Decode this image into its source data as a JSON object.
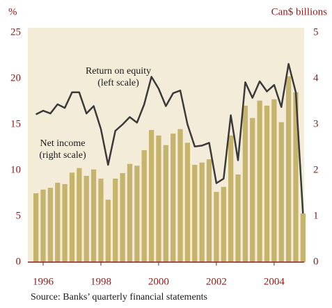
{
  "chart_data": {
    "type": "bar_line",
    "y_label": "%",
    "y2_label": "Can$ billions",
    "source": "Source: Banks’ quarterly financial statements",
    "annotations": [
      {
        "lines": [
          "Return on equity",
          "(left scale)"
        ]
      },
      {
        "lines": [
          "Net income",
          "(right scale)"
        ]
      }
    ],
    "x": [
      1995.75,
      1996,
      1996.25,
      1996.5,
      1996.75,
      1997,
      1997.25,
      1997.5,
      1997.75,
      1998,
      1998.25,
      1998.5,
      1998.75,
      1999,
      1999.25,
      1999.5,
      1999.75,
      2000,
      2000.25,
      2000.5,
      2000.75,
      2001,
      2001.25,
      2001.5,
      2001.75,
      2002,
      2002.25,
      2002.5,
      2002.75,
      2003,
      2003.25,
      2003.5,
      2003.75,
      2004,
      2004.25,
      2004.5,
      2004.75,
      2005
    ],
    "xlim": [
      1995.47,
      2005.04
    ],
    "xticks": [
      1996,
      1998,
      2000,
      2002,
      2004
    ],
    "ylim": [
      0,
      25
    ],
    "yticks": [
      0,
      5,
      10,
      15,
      20,
      25
    ],
    "y2lim": [
      0,
      5
    ],
    "y2ticks": [
      0,
      1,
      2,
      3,
      4,
      5
    ],
    "series": [
      {
        "name": "Net income",
        "type": "bar",
        "axis": "y2",
        "color": "#c7b46c",
        "values": [
          1.5,
          1.58,
          1.62,
          1.73,
          1.7,
          1.95,
          2.05,
          1.88,
          2.02,
          1.82,
          1.36,
          1.82,
          1.94,
          2.14,
          2.1,
          2.44,
          2.88,
          2.76,
          2.55,
          2.8,
          2.9,
          2.6,
          2.12,
          2.17,
          2.24,
          1.53,
          1.64,
          2.76,
          1.91,
          3.41,
          3.14,
          3.52,
          3.41,
          3.55,
          3.05,
          4.05,
          3.7,
          1.06
        ]
      },
      {
        "name": "Return on equity",
        "type": "line",
        "color": "#3a3a3a",
        "values": [
          16.1,
          16.5,
          16.2,
          17.2,
          16.8,
          18.5,
          18.5,
          16.2,
          17,
          14.5,
          10.6,
          14.3,
          15,
          15.8,
          15.2,
          17.2,
          20.2,
          18.9,
          17,
          18.4,
          18.7,
          15,
          12.6,
          12.7,
          13,
          8.6,
          9.1,
          16,
          11.1,
          19.6,
          17.9,
          19.7,
          18.6,
          19.3,
          16.9,
          21.6,
          18.5,
          5.3
        ]
      }
    ]
  }
}
